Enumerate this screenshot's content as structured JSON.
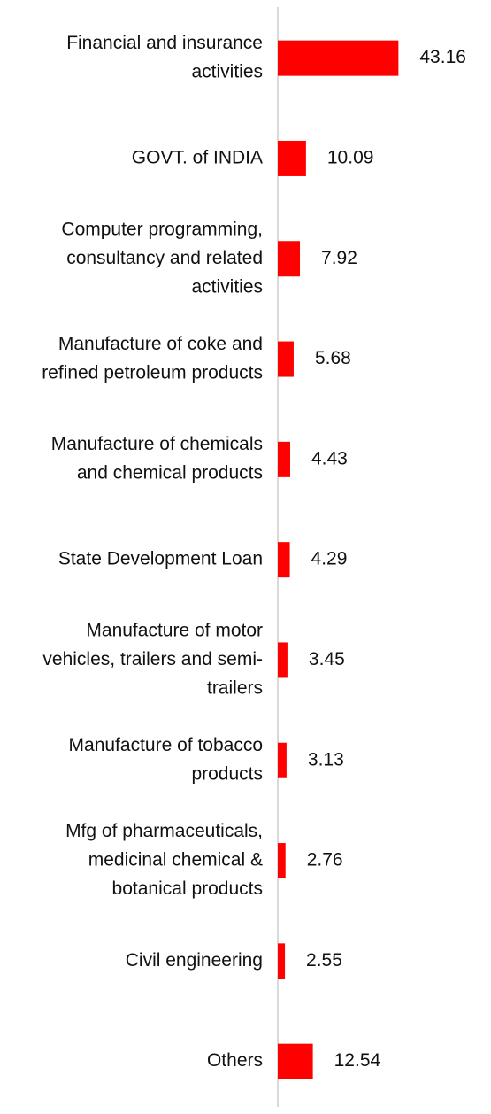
{
  "chart_data": {
    "type": "bar",
    "orientation": "horizontal",
    "categories": [
      [
        "Financial and insurance",
        "activities"
      ],
      [
        "GOVT. of INDIA"
      ],
      [
        "Computer programming,",
        "consultancy and related",
        "activities"
      ],
      [
        "Manufacture of coke and",
        "refined petroleum products"
      ],
      [
        "Manufacture of chemicals",
        "and chemical products"
      ],
      [
        "State Development Loan"
      ],
      [
        "Manufacture of motor",
        "vehicles, trailers and semi-",
        "trailers"
      ],
      [
        "Manufacture of tobacco",
        "products"
      ],
      [
        "Mfg of pharmaceuticals,",
        "medicinal chemical &",
        "botanical products"
      ],
      [
        "Civil engineering"
      ],
      [
        "Others"
      ]
    ],
    "values": [
      43.16,
      10.09,
      7.92,
      5.68,
      4.43,
      4.29,
      3.45,
      3.13,
      2.76,
      2.55,
      12.54
    ],
    "value_labels": [
      "43.16",
      "10.09",
      "7.92",
      "5.68",
      "4.43",
      "4.29",
      "3.45",
      "3.13",
      "2.76",
      "2.55",
      "12.54"
    ],
    "bar_color": "#ff0000",
    "axis_color": "#d9d9d9",
    "data_labels": true,
    "grid": false,
    "legend": "none"
  }
}
